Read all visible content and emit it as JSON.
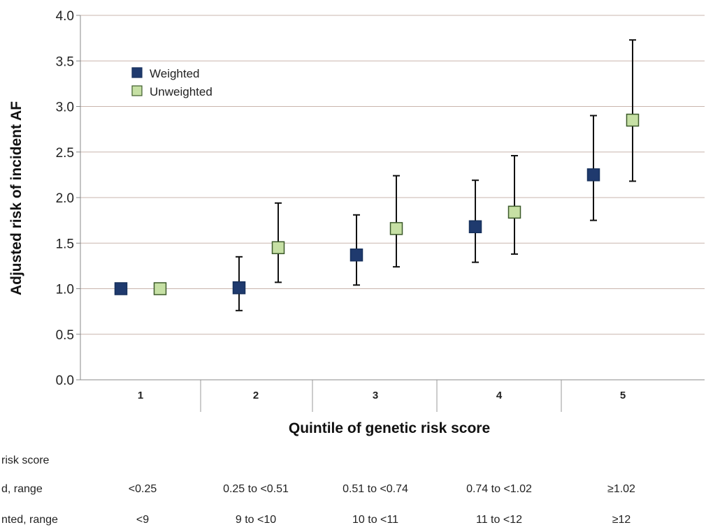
{
  "chart_data": {
    "type": "scatter",
    "title": "",
    "xlabel": "Quintile of genetic risk score",
    "ylabel": "Adjusted risk of incident AF",
    "ylim": [
      0,
      4.0
    ],
    "yticks": [
      "0.0",
      "0.5",
      "1.0",
      "1.5",
      "2.0",
      "2.5",
      "3.0",
      "3.5",
      "4.0"
    ],
    "grid": true,
    "legend_position": "top-left",
    "categories": [
      "1",
      "2",
      "3",
      "4",
      "5"
    ],
    "series": [
      {
        "name": "Weighted",
        "color": "#1f3a6e",
        "values": [
          1.0,
          1.01,
          1.37,
          1.68,
          2.25
        ],
        "ci_low": [
          null,
          0.76,
          1.04,
          1.29,
          1.75
        ],
        "ci_high": [
          null,
          1.35,
          1.81,
          2.19,
          2.9
        ]
      },
      {
        "name": "Unweighted",
        "color": "#c6e0a4",
        "values": [
          1.0,
          1.45,
          1.66,
          1.84,
          2.85
        ],
        "ci_low": [
          null,
          1.07,
          1.24,
          1.38,
          2.18
        ],
        "ci_high": [
          null,
          1.94,
          2.24,
          2.46,
          3.73
        ]
      }
    ],
    "table": {
      "rows": [
        {
          "label": "risk score",
          "cells": [
            "",
            "",
            "",
            "",
            ""
          ]
        },
        {
          "label": "d, range",
          "cells": [
            "<0.25",
            "0.25 to <0.51",
            "0.51 to <0.74",
            "0.74 to <1.02",
            "≥1.02"
          ]
        },
        {
          "label": "nted, range",
          "cells": [
            "<9",
            "9 to <10",
            "10 to <11",
            "11 to <12",
            "≥12"
          ]
        }
      ]
    }
  }
}
